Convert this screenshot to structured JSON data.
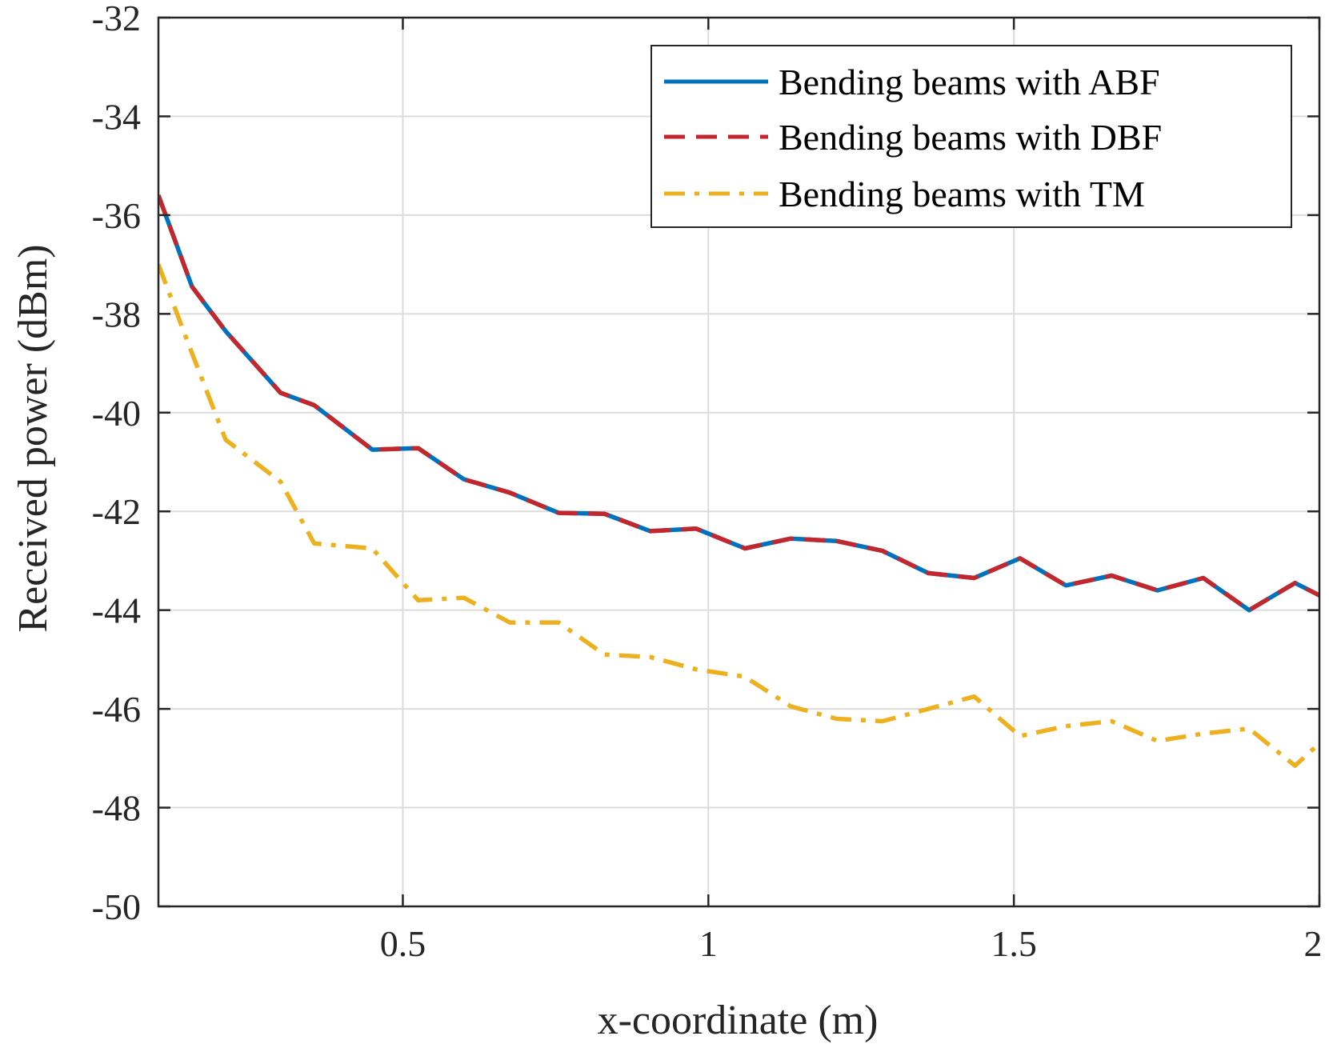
{
  "chart_data": {
    "type": "line",
    "title": "",
    "xlabel": "x-coordinate (m)",
    "ylabel": "Received power (dBm)",
    "xlim": [
      0.1,
      2
    ],
    "ylim": [
      -50,
      -32
    ],
    "grid": true,
    "legend_position": "top-right",
    "xticks": [
      {
        "value": 0.5,
        "label": "0.5"
      },
      {
        "value": 1,
        "label": "1"
      },
      {
        "value": 1.5,
        "label": "1.5"
      },
      {
        "value": 2,
        "label": "2"
      }
    ],
    "yticks": [
      {
        "value": -32,
        "label": "-32"
      },
      {
        "value": -34,
        "label": "-34"
      },
      {
        "value": -36,
        "label": "-36"
      },
      {
        "value": -38,
        "label": "-38"
      },
      {
        "value": -40,
        "label": "-40"
      },
      {
        "value": -42,
        "label": "-42"
      },
      {
        "value": -44,
        "label": "-44"
      },
      {
        "value": -46,
        "label": "-46"
      },
      {
        "value": -48,
        "label": "-48"
      },
      {
        "value": -50,
        "label": "-50"
      }
    ],
    "x": [
      0.1,
      0.155,
      0.21,
      0.3,
      0.355,
      0.45,
      0.525,
      0.6,
      0.675,
      0.755,
      0.83,
      0.905,
      0.98,
      1.06,
      1.135,
      1.21,
      1.285,
      1.36,
      1.435,
      1.51,
      1.585,
      1.66,
      1.735,
      1.81,
      1.885,
      1.96,
      2.0
    ],
    "series": [
      {
        "name": "Bending beams with ABF",
        "color": "#0072BD",
        "style": "solid",
        "values": [
          -35.6,
          -37.45,
          -38.35,
          -39.6,
          -39.85,
          -40.75,
          -40.72,
          -41.35,
          -41.62,
          -42.03,
          -42.05,
          -42.4,
          -42.35,
          -42.75,
          -42.55,
          -42.6,
          -42.8,
          -43.25,
          -43.35,
          -42.95,
          -43.5,
          -43.3,
          -43.6,
          -43.35,
          -44.0,
          -43.45,
          -43.7
        ]
      },
      {
        "name": "Bending beams with DBF",
        "color": "#C1272D",
        "style": "dashed",
        "values": [
          -35.6,
          -37.45,
          -38.35,
          -39.6,
          -39.85,
          -40.75,
          -40.72,
          -41.35,
          -41.62,
          -42.03,
          -42.05,
          -42.4,
          -42.35,
          -42.75,
          -42.55,
          -42.6,
          -42.8,
          -43.25,
          -43.35,
          -42.95,
          -43.5,
          -43.3,
          -43.6,
          -43.35,
          -44.0,
          -43.45,
          -43.7
        ]
      },
      {
        "name": "Bending beams with TM",
        "color": "#EDB120",
        "style": "dashdot",
        "values": [
          -37.0,
          -38.8,
          -40.55,
          -41.4,
          -42.65,
          -42.75,
          -43.8,
          -43.75,
          -44.25,
          -44.25,
          -44.9,
          -44.95,
          -45.2,
          -45.35,
          -45.95,
          -46.2,
          -46.25,
          -46.0,
          -45.75,
          -46.55,
          -46.35,
          -46.25,
          -46.65,
          -46.5,
          -46.4,
          -47.15,
          -46.7
        ]
      }
    ]
  }
}
